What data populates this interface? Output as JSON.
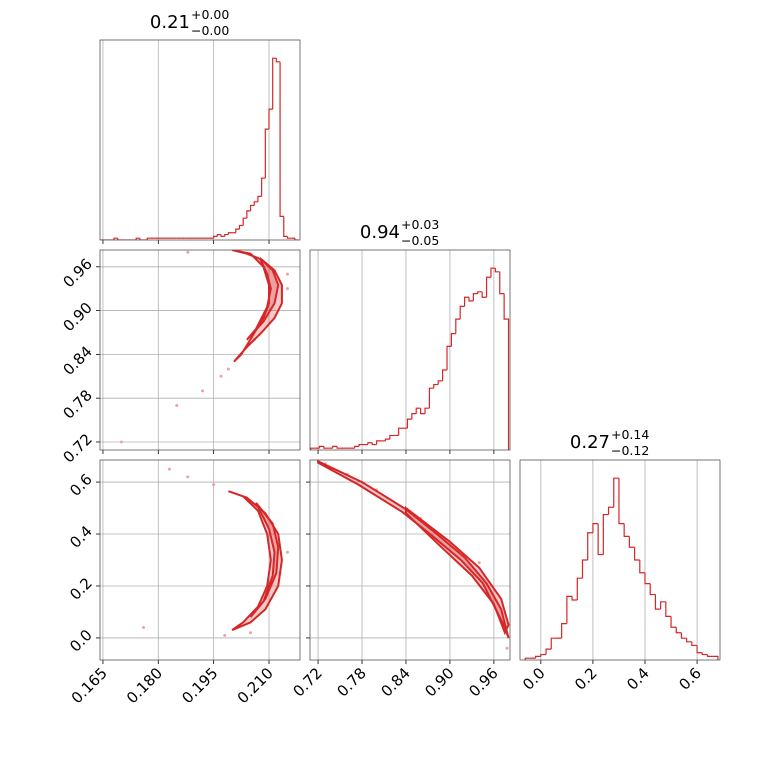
{
  "chart_data": [
    {
      "type": "histogram",
      "title": "0.21",
      "title_upper": "+0.00",
      "title_lower": "−0.00",
      "color": "#d62728",
      "grid": true,
      "xlim": [
        0.1642,
        0.2184
      ],
      "ylim": [
        0,
        110
      ],
      "xticks": [
        0.165,
        {
          "value": 0.18,
          "label": "0.180"
        },
        0.195,
        {
          "value": 0.21,
          "label": "0.210"
        }
      ],
      "bins": [
        0.164,
        0.165,
        0.166,
        0.167,
        0.168,
        0.169,
        0.17,
        0.171,
        0.172,
        0.173,
        0.174,
        0.175,
        0.176,
        0.177,
        0.178,
        0.179,
        0.18,
        0.181,
        0.182,
        0.183,
        0.184,
        0.185,
        0.186,
        0.187,
        0.188,
        0.189,
        0.19,
        0.191,
        0.192,
        0.193,
        0.194,
        0.195,
        0.196,
        0.197,
        0.198,
        0.199,
        0.2,
        0.201,
        0.202,
        0.203,
        0.204,
        0.205,
        0.206,
        0.207,
        0.208,
        0.209,
        0.21,
        0.211,
        0.212,
        0.213,
        0.214,
        0.215,
        0.216,
        0.217,
        0.218
      ],
      "values": [
        0,
        0,
        0,
        0,
        1,
        0,
        0,
        0,
        0,
        0,
        1,
        0,
        0,
        1,
        1,
        1,
        1,
        1,
        1,
        1,
        1,
        1,
        1,
        1,
        1,
        1,
        1,
        1,
        1,
        1,
        1,
        2,
        3,
        2,
        3,
        4,
        4,
        6,
        8,
        12,
        16,
        19,
        21,
        24,
        34,
        61,
        72,
        100,
        98,
        13,
        2,
        1,
        1,
        0
      ]
    },
    {
      "type": "contour",
      "color": "#d62728",
      "grid": true,
      "xlim": [
        0.1642,
        0.2184
      ],
      "ylim": [
        0.709,
        0.983
      ],
      "xticks": [
        0.165,
        {
          "value": 0.18,
          "label": "0.180"
        },
        0.195,
        {
          "value": 0.21,
          "label": "0.210"
        }
      ],
      "yticks": [
        0.72,
        0.78,
        0.84,
        {
          "value": 0.9,
          "label": "0.90"
        },
        0.96
      ],
      "series": [
        {
          "x": [
            0.2005,
            0.204,
            0.208,
            0.2115,
            0.2135,
            0.2135,
            0.2115,
            0.208,
            0.204,
            0.2,
            0.205,
            0.2085,
            0.21,
            0.21,
            0.2085,
            0.2055,
            0.2025
          ],
          "y": [
            0.83,
            0.85,
            0.87,
            0.89,
            0.91,
            0.935,
            0.955,
            0.97,
            0.978,
            0.983,
            0.978,
            0.96,
            0.935,
            0.91,
            0.89,
            0.865,
            0.84
          ]
        },
        {
          "x": [
            0.204,
            0.2085,
            0.2115,
            0.2125,
            0.211,
            0.2075,
            0.2095,
            0.2105,
            0.2095,
            0.2065
          ],
          "y": [
            0.86,
            0.885,
            0.91,
            0.935,
            0.955,
            0.972,
            0.95,
            0.93,
            0.905,
            0.875
          ]
        }
      ],
      "points": {
        "color": "#f2a0a0",
        "x": [
          0.17,
          0.185,
          0.192,
          0.197,
          0.215,
          0.206,
          0.188,
          0.215,
          0.199
        ],
        "y": [
          0.72,
          0.77,
          0.79,
          0.81,
          0.93,
          0.86,
          0.98,
          0.95,
          0.82
        ]
      }
    },
    {
      "type": "histogram",
      "title": "0.94",
      "title_upper": "+0.03",
      "title_lower": "−0.05",
      "color": "#d62728",
      "grid": true,
      "xlim": [
        0.709,
        0.982
      ],
      "ylim": [
        0,
        110
      ],
      "xticks": [
        0.72,
        0.78,
        0.84,
        {
          "value": 0.9,
          "label": "0.90"
        },
        0.96
      ],
      "bins": [
        0.71,
        0.716,
        0.722,
        0.728,
        0.734,
        0.74,
        0.746,
        0.752,
        0.758,
        0.764,
        0.77,
        0.776,
        0.782,
        0.788,
        0.794,
        0.8,
        0.806,
        0.812,
        0.818,
        0.824,
        0.83,
        0.836,
        0.842,
        0.848,
        0.854,
        0.86,
        0.866,
        0.872,
        0.878,
        0.884,
        0.89,
        0.896,
        0.902,
        0.908,
        0.914,
        0.92,
        0.926,
        0.932,
        0.938,
        0.944,
        0.95,
        0.956,
        0.962,
        0.968,
        0.974,
        0.98
      ],
      "values": [
        1,
        1,
        2,
        1,
        1,
        2,
        1,
        1,
        1,
        1,
        2,
        3,
        3,
        4,
        3,
        5,
        5,
        6,
        8,
        8,
        12,
        12,
        17,
        20,
        23,
        20,
        23,
        34,
        36,
        38,
        44,
        57,
        64,
        72,
        79,
        84,
        82,
        86,
        87,
        84,
        95,
        100,
        98,
        86,
        72
      ]
    },
    {
      "type": "contour",
      "color": "#d62728",
      "grid": true,
      "xlim": [
        0.1642,
        0.2184
      ],
      "ylim": [
        -0.085,
        0.685
      ],
      "xticks": [
        0.165,
        {
          "value": 0.18,
          "label": "0.180"
        },
        0.195,
        {
          "value": 0.21,
          "label": "0.210"
        }
      ],
      "yticks": [
        {
          "value": 0,
          "label": "0.0"
        },
        0.2,
        0.4,
        0.6
      ],
      "series": [
        {
          "x": [
            0.2,
            0.205,
            0.209,
            0.2125,
            0.2135,
            0.2125,
            0.209,
            0.204,
            0.199,
            0.203,
            0.207,
            0.2095,
            0.2105,
            0.2095,
            0.207,
            0.203
          ],
          "y": [
            0.03,
            0.06,
            0.11,
            0.2,
            0.3,
            0.4,
            0.48,
            0.54,
            0.565,
            0.545,
            0.49,
            0.4,
            0.3,
            0.2,
            0.12,
            0.06
          ]
        },
        {
          "x": [
            0.205,
            0.209,
            0.212,
            0.2125,
            0.211,
            0.2065,
            0.21,
            0.2115,
            0.211,
            0.2085
          ],
          "y": [
            0.08,
            0.15,
            0.25,
            0.35,
            0.44,
            0.52,
            0.42,
            0.33,
            0.24,
            0.14
          ]
        }
      ],
      "points": {
        "color": "#f2a0a0",
        "x": [
          0.183,
          0.195,
          0.213,
          0.198,
          0.176,
          0.215,
          0.188,
          0.205
        ],
        "y": [
          0.65,
          0.59,
          0.25,
          0.01,
          0.04,
          0.33,
          0.62,
          0.02
        ]
      }
    },
    {
      "type": "contour",
      "color": "#d62728",
      "grid": true,
      "xlim": [
        0.709,
        0.982
      ],
      "ylim": [
        -0.085,
        0.685
      ],
      "xticks": [
        0.72,
        0.78,
        0.84,
        {
          "value": 0.9,
          "label": "0.90"
        },
        0.96
      ],
      "yticks": [
        {
          "value": 0,
          "label": "0.0"
        },
        0.2,
        0.4,
        0.6
      ],
      "series": [
        {
          "x": [
            0.72,
            0.78,
            0.84,
            0.88,
            0.92,
            0.95,
            0.97,
            0.98,
            0.975,
            0.945,
            0.915,
            0.875,
            0.835,
            0.775,
            0.72
          ],
          "y": [
            0.68,
            0.6,
            0.495,
            0.405,
            0.31,
            0.21,
            0.11,
            0.0,
            0.04,
            0.21,
            0.3,
            0.395,
            0.485,
            0.59,
            0.675
          ]
        },
        {
          "x": [
            0.84,
            0.9,
            0.94,
            0.97,
            0.98,
            0.975,
            0.96,
            0.93,
            0.89,
            0.84
          ],
          "y": [
            0.5,
            0.37,
            0.27,
            0.15,
            0.05,
            0.02,
            0.13,
            0.24,
            0.345,
            0.48
          ]
        }
      ],
      "points": {
        "color": "#f2a0a0",
        "x": [
          0.73,
          0.8,
          0.86,
          0.94,
          0.978,
          0.76
        ],
        "y": [
          0.67,
          0.57,
          0.46,
          0.29,
          -0.04,
          0.63
        ]
      }
    },
    {
      "type": "histogram",
      "title": "0.27",
      "title_upper": "+0.14",
      "title_lower": "−0.12",
      "color": "#d62728",
      "grid": true,
      "xlim": [
        -0.08,
        0.688
      ],
      "ylim": [
        0,
        110
      ],
      "xticks": [
        {
          "value": 0,
          "label": "0.0"
        },
        0.2,
        0.4,
        0.6
      ],
      "bins": [
        -0.06,
        -0.04,
        -0.02,
        0,
        0.02,
        0.04,
        0.06,
        0.08,
        0.1,
        0.12,
        0.14,
        0.16,
        0.18,
        0.2,
        0.22,
        0.24,
        0.26,
        0.28,
        0.3,
        0.32,
        0.34,
        0.36,
        0.38,
        0.4,
        0.42,
        0.44,
        0.46,
        0.48,
        0.5,
        0.52,
        0.54,
        0.56,
        0.58,
        0.6,
        0.62,
        0.64,
        0.66,
        0.68
      ],
      "values": [
        1,
        1,
        2,
        3,
        6,
        12,
        12,
        20,
        35,
        33,
        45,
        55,
        70,
        75,
        58,
        80,
        84,
        100,
        75,
        68,
        62,
        55,
        48,
        42,
        36,
        28,
        32,
        24,
        18,
        15,
        12,
        10,
        8,
        4,
        3,
        2,
        2
      ]
    }
  ]
}
